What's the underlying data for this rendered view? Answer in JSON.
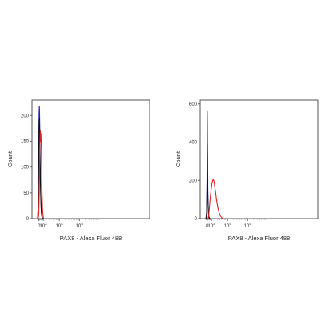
{
  "chart_data": [
    {
      "type": "line",
      "xlabel": "PAX8 - Alexa Fluor 488",
      "ylabel": "Count",
      "xscale": "biexponential",
      "ylim": [
        0,
        230
      ],
      "y_ticks": [
        0,
        50,
        100,
        150,
        200
      ],
      "x_ticks": [
        {
          "base": "0",
          "exp": ""
        },
        {
          "base": "10",
          "exp": "3"
        },
        {
          "base": "10",
          "exp": "4"
        },
        {
          "base": "10",
          "exp": "5"
        }
      ],
      "grid": false,
      "legend": "none",
      "series": [
        {
          "color": "#2222bb",
          "x": [
            -300,
            -150,
            -50,
            0,
            40,
            80,
            120,
            170,
            230,
            300,
            380,
            480,
            600,
            750,
            900
          ],
          "y": [
            0,
            40,
            150,
            200,
            212,
            218,
            205,
            175,
            130,
            90,
            55,
            25,
            8,
            2,
            0
          ]
        },
        {
          "color": "#111111",
          "x": [
            -300,
            -150,
            -50,
            0,
            40,
            80,
            120,
            170,
            230,
            300,
            380,
            480,
            600,
            750,
            900
          ],
          "y": [
            0,
            35,
            130,
            180,
            192,
            195,
            180,
            150,
            110,
            75,
            45,
            20,
            6,
            1,
            0
          ]
        },
        {
          "color": "#dd2222",
          "x": [
            -200,
            -50,
            50,
            120,
            180,
            240,
            300,
            360,
            420,
            480,
            540,
            600,
            700,
            800,
            950,
            1100
          ],
          "y": [
            0,
            10,
            50,
            100,
            140,
            160,
            170,
            148,
            165,
            155,
            130,
            95,
            50,
            20,
            5,
            0
          ]
        }
      ]
    },
    {
      "type": "line",
      "xlabel": "PAX8 - Alexa Fluor 488",
      "ylabel": "Count",
      "xscale": "biexponential",
      "ylim": [
        0,
        620
      ],
      "y_ticks": [
        0,
        200,
        400,
        600
      ],
      "x_ticks": [
        {
          "base": "0",
          "exp": ""
        },
        {
          "base": "10",
          "exp": "3"
        },
        {
          "base": "10",
          "exp": "4"
        },
        {
          "base": "10",
          "exp": "5"
        }
      ],
      "grid": false,
      "legend": "none",
      "series": [
        {
          "color": "#2222bb",
          "x": [
            -300,
            -150,
            -60,
            -20,
            0,
            30,
            60,
            100,
            150,
            220,
            300,
            400,
            550,
            700
          ],
          "y": [
            0,
            30,
            200,
            450,
            560,
            480,
            350,
            220,
            120,
            60,
            25,
            8,
            2,
            0
          ]
        },
        {
          "color": "#111111",
          "x": [
            -300,
            -150,
            -60,
            -20,
            0,
            30,
            60,
            100,
            150,
            220,
            300,
            400,
            550,
            700
          ],
          "y": [
            0,
            20,
            150,
            320,
            390,
            350,
            260,
            170,
            100,
            50,
            20,
            6,
            1,
            0
          ]
        },
        {
          "color": "#dd2222",
          "x": [
            200,
            350,
            500,
            700,
            900,
            1100,
            1300,
            1500,
            1700,
            1900,
            2200,
            2500,
            3000,
            3500,
            4200,
            5000,
            6000
          ],
          "y": [
            0,
            20,
            60,
            110,
            150,
            180,
            200,
            205,
            195,
            170,
            140,
            100,
            60,
            35,
            15,
            5,
            0
          ]
        }
      ]
    }
  ]
}
